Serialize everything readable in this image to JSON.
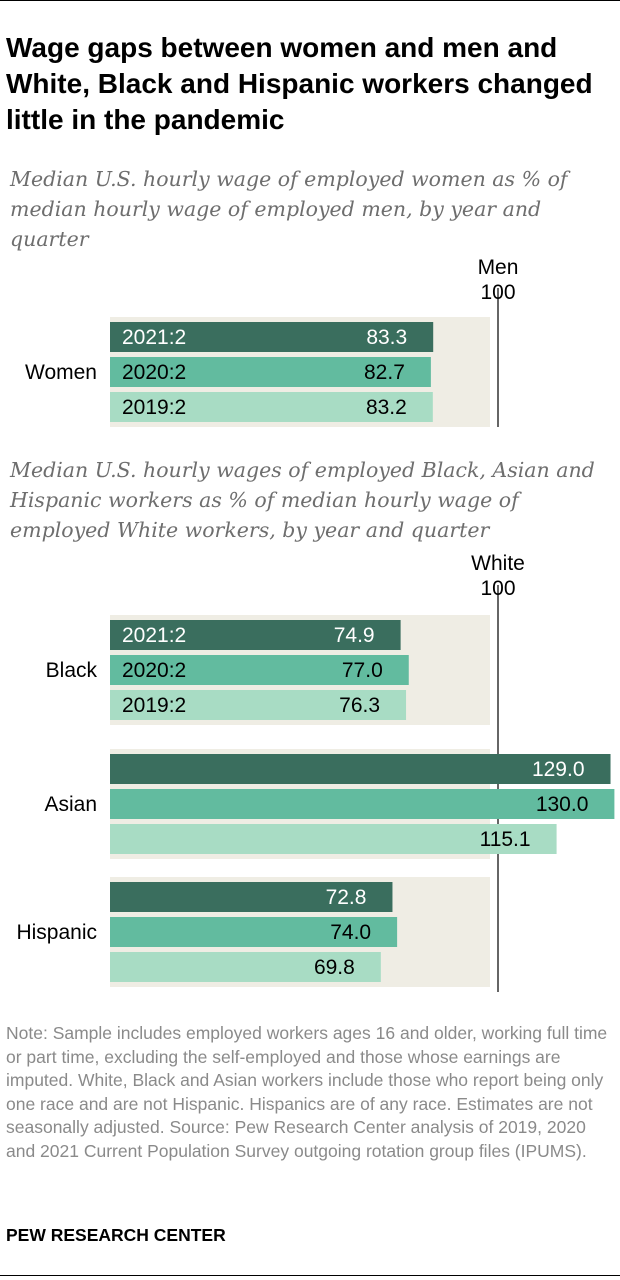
{
  "title": "Wage gaps between women and men and White, Black and Hispanic workers changed little in the pandemic",
  "note": "Note: Sample includes employed workers ages 16 and older, working full time or part time, excluding the self-employed and those whose earnings are imputed. White, Black and Asian workers include those who report being only one race and are not Hispanic. Hispanics are of any race. Estimates are not seasonally adjusted.",
  "source": "Source: Pew Research Center analysis of 2019, 2020 and 2021 Current Population Survey outgoing rotation group files (IPUMS).",
  "brand": "PEW RESEARCH CENTER",
  "colors": {
    "q2021": "#3a6e5e",
    "q2020": "#62bb9f",
    "q2019": "#a8dcc4",
    "panel": "#efede4",
    "reference_line": "#000000"
  },
  "chart_data": [
    {
      "type": "bar",
      "orientation": "horizontal",
      "title": "Median U.S. hourly wage of employed women as % of median hourly wage of employed men, by year and quarter",
      "reference": {
        "label": "Men",
        "value_label": "100",
        "value": 100
      },
      "xlim": [
        0,
        130
      ],
      "groups": [
        {
          "name": "Women",
          "bars": [
            {
              "label": "2021:2",
              "value": 83.3,
              "value_label": "83.3"
            },
            {
              "label": "2020:2",
              "value": 82.7,
              "value_label": "82.7"
            },
            {
              "label": "2019:2",
              "value": 83.2,
              "value_label": "83.2"
            }
          ]
        }
      ]
    },
    {
      "type": "bar",
      "orientation": "horizontal",
      "title": "Median U.S. hourly wages of employed Black, Asian and Hispanic workers as % of median hourly wage of employed White workers, by year and quarter",
      "reference": {
        "label": "White",
        "value_label": "100",
        "value": 100
      },
      "xlim": [
        0,
        130
      ],
      "groups": [
        {
          "name": "Black",
          "bars": [
            {
              "label": "2021:2",
              "value": 74.9,
              "value_label": "74.9"
            },
            {
              "label": "2020:2",
              "value": 77.0,
              "value_label": "77.0"
            },
            {
              "label": "2019:2",
              "value": 76.3,
              "value_label": "76.3"
            }
          ]
        },
        {
          "name": "Asian",
          "bars": [
            {
              "value": 129.0,
              "value_label": "129.0"
            },
            {
              "value": 130.0,
              "value_label": "130.0"
            },
            {
              "value": 115.1,
              "value_label": "115.1"
            }
          ]
        },
        {
          "name": "Hispanic",
          "bars": [
            {
              "value": 72.8,
              "value_label": "72.8"
            },
            {
              "value": 74.0,
              "value_label": "74.0"
            },
            {
              "value": 69.8,
              "value_label": "69.8"
            }
          ]
        }
      ]
    }
  ]
}
